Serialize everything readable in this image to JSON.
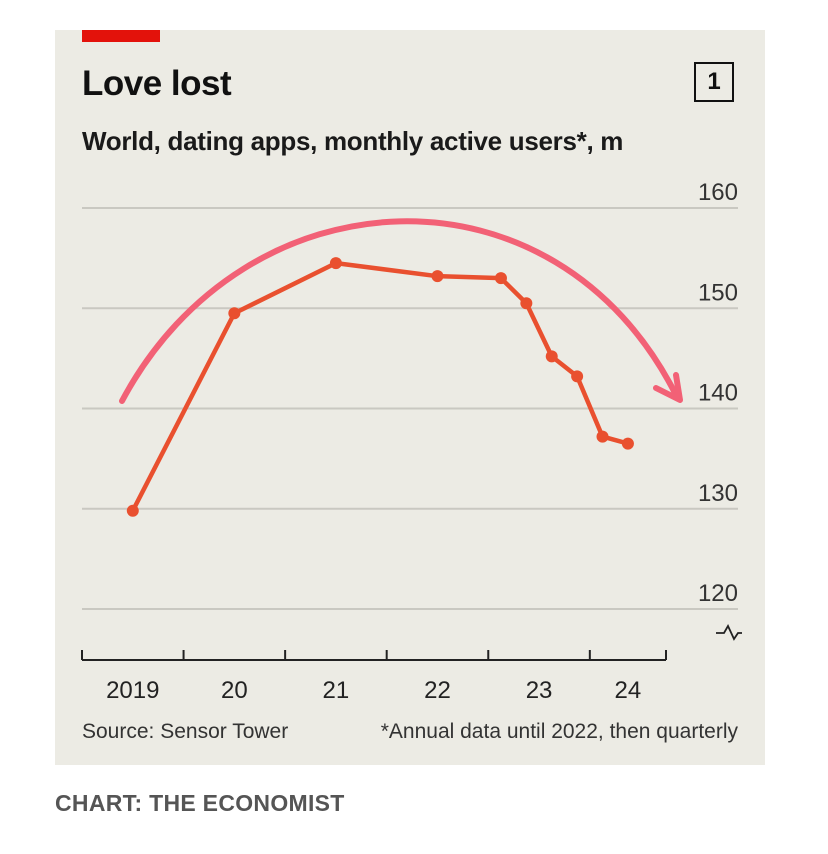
{
  "title": "Love lost",
  "chart_number": "1",
  "subtitle": "World, dating apps, monthly active users*, m",
  "source": "Source: Sensor Tower",
  "footnote": "*Annual data until 2022, then quarterly",
  "credit": "CHART: THE ECONOMIST",
  "colors": {
    "background": "#ecebe4",
    "line": "#e9502f",
    "trend_arrow": "#f26176",
    "brand_red": "#e3120b",
    "gridline": "#c9c8c1"
  },
  "chart_data": {
    "type": "line",
    "title": "Love lost",
    "subtitle": "World, dating apps, monthly active users*, m",
    "ylabel": "monthly active users, m",
    "ylim": [
      120,
      160
    ],
    "y_ticks": [
      120,
      130,
      140,
      150,
      160
    ],
    "y_tick_labels": [
      "120",
      "130",
      "140",
      "150",
      "160"
    ],
    "x_range": [
      2019,
      2024.75
    ],
    "x_ticks": [
      2019,
      2020,
      2021,
      2022,
      2023,
      2024
    ],
    "x_tick_labels": [
      "2019",
      "20",
      "21",
      "22",
      "23",
      "24"
    ],
    "axis_break": true,
    "series": [
      {
        "name": "Monthly active users",
        "x": [
          2019.5,
          2020.5,
          2021.5,
          2022.5,
          2023.125,
          2023.375,
          2023.625,
          2023.875,
          2024.125,
          2024.375
        ],
        "y": [
          129.8,
          149.5,
          154.5,
          153.2,
          153.0,
          150.5,
          145.2,
          143.2,
          137.2,
          136.5
        ]
      }
    ],
    "annotation": {
      "type": "trend-arrow",
      "description": "downward arc"
    }
  }
}
